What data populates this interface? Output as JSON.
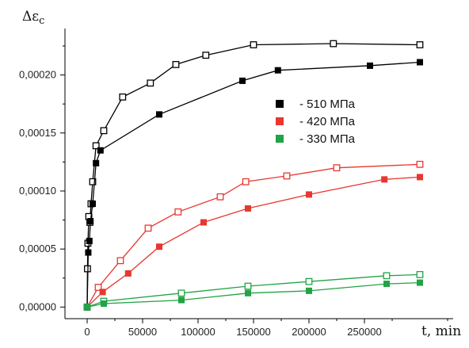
{
  "chart_data": {
    "type": "line",
    "ylabel": "Δε",
    "ylabel_subscript": "c",
    "xlabel": "t, min",
    "xlim": [
      -20000,
      330000
    ],
    "ylim": [
      -1e-05,
      0.00024
    ],
    "x_ticks": [
      0,
      50000,
      100000,
      150000,
      200000,
      250000
    ],
    "y_ticks": [
      0.0,
      5e-05,
      0.0001,
      0.00015,
      0.0002
    ],
    "y_tick_labels": [
      "0,00000",
      "0,00005",
      "0,00010",
      "0,00015",
      "0,00020"
    ],
    "grid": false,
    "legend": {
      "position": "center-right",
      "entries": [
        {
          "label": "- 510 МПа",
          "color": "#000000"
        },
        {
          "label": "- 420 МПа",
          "color": "#e8372f"
        },
        {
          "label": "- 330 МПа",
          "color": "#22a345"
        }
      ]
    },
    "series": [
      {
        "group": "510",
        "marker": "open-square",
        "color": "#000000",
        "x": [
          0,
          300,
          700,
          1500,
          2500,
          3500,
          5000,
          8000,
          15000,
          32000,
          57000,
          80000,
          107000,
          150000,
          222000,
          300000
        ],
        "y": [
          0.0,
          3.3e-05,
          5.5e-05,
          7.8e-05,
          7.3e-05,
          8.9e-05,
          0.000108,
          0.000139,
          0.000152,
          0.000181,
          0.000193,
          0.000209,
          0.000217,
          0.000226,
          0.000227,
          0.000226
        ]
      },
      {
        "group": "510",
        "marker": "filled-square",
        "color": "#000000",
        "x": [
          0,
          1000,
          2000,
          3000,
          5000,
          8000,
          12000,
          65000,
          140000,
          172000,
          255000,
          300000
        ],
        "y": [
          0.0,
          4.7e-05,
          5.7e-05,
          7.4e-05,
          8.9e-05,
          0.000124,
          0.000135,
          0.000166,
          0.000195,
          0.000204,
          0.000208,
          0.000211
        ]
      },
      {
        "group": "420",
        "marker": "open-square",
        "color": "#e8372f",
        "x": [
          0,
          10000,
          30000,
          55000,
          82000,
          120000,
          143000,
          180000,
          225000,
          300000
        ],
        "y": [
          0.0,
          1.7e-05,
          4e-05,
          6.8e-05,
          8.2e-05,
          9.5e-05,
          0.000108,
          0.000113,
          0.00012,
          0.000123
        ]
      },
      {
        "group": "420",
        "marker": "filled-square",
        "color": "#e8372f",
        "x": [
          0,
          14000,
          37000,
          65000,
          105000,
          145000,
          200000,
          268000,
          300000
        ],
        "y": [
          0.0,
          1.3e-05,
          2.9e-05,
          5.2e-05,
          7.3e-05,
          8.5e-05,
          9.7e-05,
          0.00011,
          0.000112
        ]
      },
      {
        "group": "330",
        "marker": "open-square",
        "color": "#22a345",
        "x": [
          0,
          15000,
          85000,
          145000,
          200000,
          270000,
          300000
        ],
        "y": [
          0.0,
          5e-06,
          1.2e-05,
          1.8e-05,
          2.2e-05,
          2.7e-05,
          2.8e-05
        ]
      },
      {
        "group": "330",
        "marker": "filled-square",
        "color": "#22a345",
        "x": [
          0,
          15000,
          85000,
          145000,
          200000,
          270000,
          300000
        ],
        "y": [
          0.0,
          3e-06,
          6e-06,
          1.2e-05,
          1.4e-05,
          2e-05,
          2.1e-05
        ]
      }
    ]
  }
}
